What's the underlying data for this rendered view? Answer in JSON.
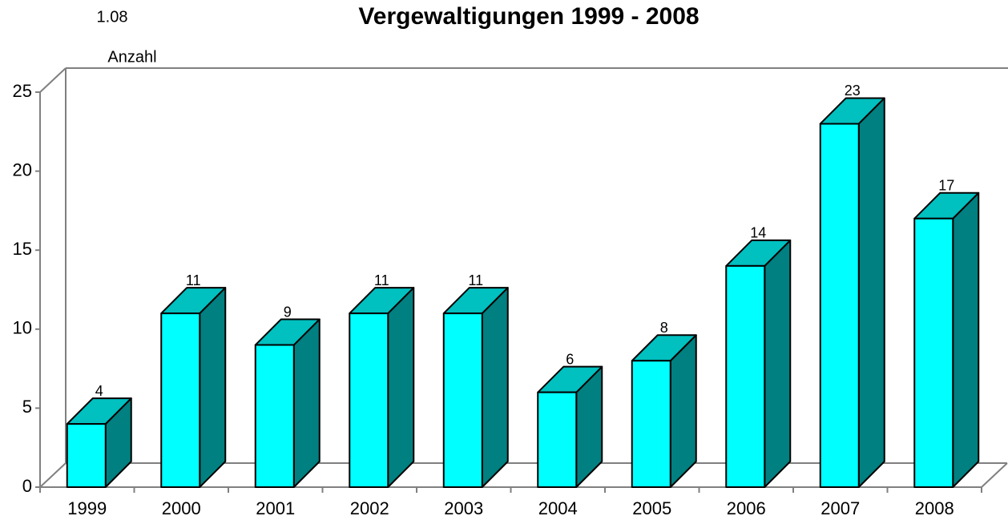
{
  "chart_data": {
    "type": "bar3d",
    "title": "Vergewaltigungen 1999 - 2008",
    "subtitle": "1.08",
    "y_label": "Anzahl",
    "categories": [
      "1999",
      "2000",
      "2001",
      "2002",
      "2003",
      "2004",
      "2005",
      "2006",
      "2007",
      "2008"
    ],
    "values": [
      4,
      11,
      9,
      11,
      11,
      6,
      8,
      14,
      23,
      17
    ],
    "colors": {
      "front": "#00ffff",
      "top": "#00c0c0",
      "side": "#008080"
    },
    "ylim": [
      0,
      25
    ],
    "yticks": [
      0,
      5,
      10,
      15,
      20,
      25
    ],
    "grid": false
  }
}
